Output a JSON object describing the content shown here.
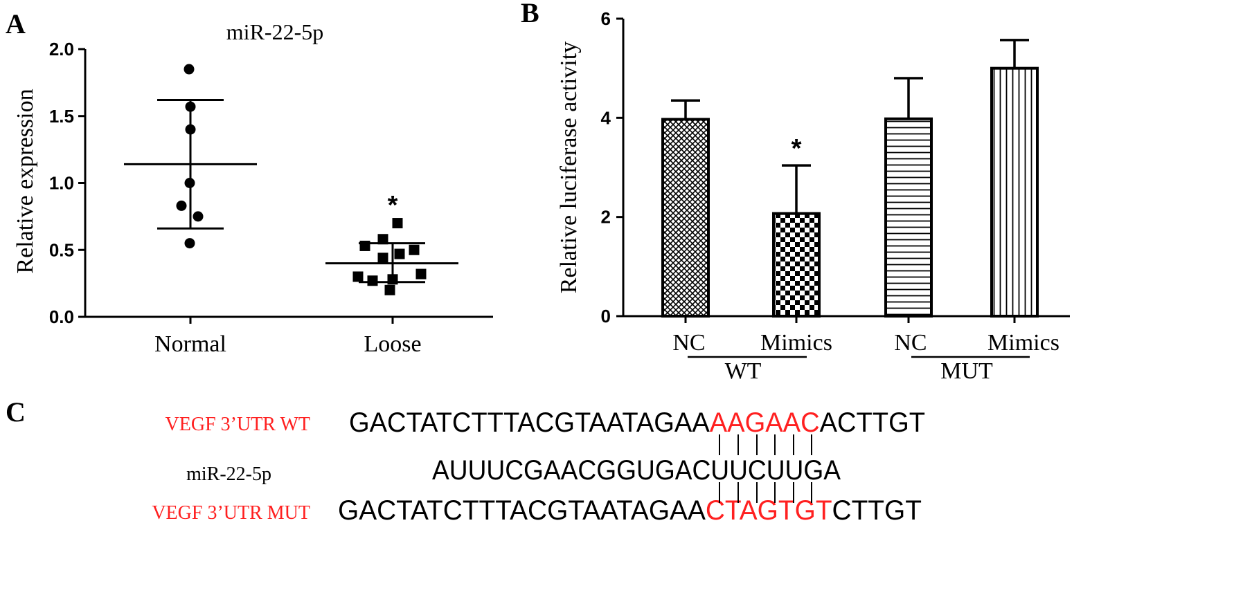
{
  "panels": {
    "a": "A",
    "b": "B",
    "c": "C"
  },
  "chart_data": [
    {
      "panel": "A",
      "type": "scatter",
      "title": "miR-22-5p",
      "xlabel": "",
      "ylabel": "Relative expression",
      "ylim": [
        0,
        2.0
      ],
      "yticks": [
        "0.0",
        "0.5",
        "1.0",
        "1.5",
        "2.0"
      ],
      "categories": [
        "Normal",
        "Loose"
      ],
      "series": [
        {
          "category": "Normal",
          "marker": "circle",
          "points": [
            1.85,
            1.57,
            1.4,
            1.0,
            0.83,
            0.75,
            0.55
          ],
          "mean": 1.14,
          "sd_upper": 1.62,
          "sd_lower": 0.66
        },
        {
          "category": "Loose",
          "marker": "square",
          "points": [
            0.7,
            0.58,
            0.53,
            0.5,
            0.47,
            0.44,
            0.32,
            0.3,
            0.28,
            0.27,
            0.2
          ],
          "mean": 0.4,
          "sd_upper": 0.55,
          "sd_lower": 0.26,
          "annotation": "*"
        }
      ],
      "grid": false
    },
    {
      "panel": "B",
      "type": "bar",
      "title": "",
      "xlabel": "",
      "ylabel": "Relative luciferase activity",
      "ylim": [
        0,
        6
      ],
      "yticks": [
        "0",
        "2",
        "4",
        "6"
      ],
      "categories": [
        "NC",
        "Mimics",
        "NC",
        "Mimics"
      ],
      "groups": [
        "WT",
        "MUT"
      ],
      "values": [
        3.97,
        2.07,
        3.98,
        5.0
      ],
      "errors": [
        0.38,
        0.97,
        0.82,
        0.57
      ],
      "patterns": [
        "crosshatch",
        "checker",
        "horizontal",
        "vertical"
      ],
      "annotations": [
        "",
        "*",
        "",
        ""
      ],
      "grid": false
    }
  ],
  "sequences": {
    "wt_label": "VEGF 3’UTR WT",
    "mir_label": "miR-22-5p",
    "mut_label": "VEGF 3’UTR MUT",
    "wt": {
      "prefix": "GACTATCTTTACGTAATAGAA",
      "site": "AAGAAC",
      "suffix": "ACTTGT"
    },
    "mir": "AUUUCGAACGGUGACUUCUUGA",
    "mut": {
      "prefix": "GACTATCTTTACGTAATAGAA",
      "site": "CTAGTGT",
      "suffix": "CTTGT"
    },
    "colors": {
      "highlight": "#ff2020",
      "text": "#000000"
    }
  }
}
